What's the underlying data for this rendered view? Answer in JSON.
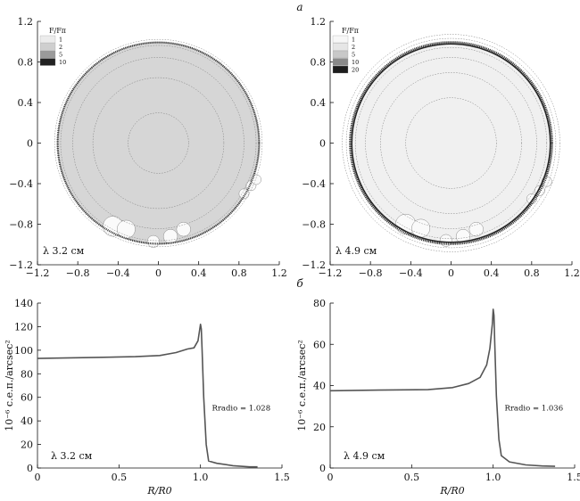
{
  "panel_labels": {
    "top": "a",
    "bottom": "б"
  },
  "colors": {
    "disk_top_left": "#d6d6d6",
    "disk_top_right": "#f0f0f0",
    "line": "#555555",
    "axis": "#111111"
  },
  "chart_data": [
    {
      "type": "heatmap",
      "title": "",
      "annotation": "λ 3.2 см",
      "legend_title": "F/Fπ",
      "legend": [
        {
          "label": "1",
          "color": "#ececec"
        },
        {
          "label": "2",
          "color": "#cfcfcf"
        },
        {
          "label": "5",
          "color": "#9a9a9a"
        },
        {
          "label": "10",
          "color": "#222222"
        }
      ],
      "xlim": [
        -1.2,
        1.2
      ],
      "ylim": [
        -1.2,
        1.2
      ],
      "xticks": [
        "−1.2",
        "−0.8",
        "−0.4",
        "0",
        "0.4",
        "0.8",
        "1.2"
      ],
      "yticks": [
        "1.2",
        "0.8",
        "0.4",
        "0",
        "−0.4",
        "−0.8",
        "−1.2"
      ],
      "disk_radius": 1.0,
      "contour_radii": [
        0.3,
        0.65,
        0.85,
        0.97,
        1.03
      ]
    },
    {
      "type": "heatmap",
      "title": "",
      "annotation": "λ 4.9 см",
      "legend_title": "F/Fπ",
      "legend": [
        {
          "label": "1",
          "color": "#f7f7f7"
        },
        {
          "label": "2",
          "color": "#e6e6e6"
        },
        {
          "label": "5",
          "color": "#c8c8c8"
        },
        {
          "label": "10",
          "color": "#8a8a8a"
        },
        {
          "label": "20",
          "color": "#1d1d1d"
        }
      ],
      "xlim": [
        -1.2,
        1.2
      ],
      "ylim": [
        -1.2,
        1.2
      ],
      "xticks": [
        "−1.2",
        "−0.8",
        "−0.4",
        "0",
        "0.4",
        "0.8",
        "1.2"
      ],
      "yticks": [
        "1.2",
        "0.8",
        "0.4",
        "0",
        "−0.4",
        "−0.8",
        "−1.2"
      ],
      "disk_radius": 1.0,
      "contour_radii": [
        0.45,
        0.7,
        0.85,
        0.95,
        1.04,
        1.08
      ]
    },
    {
      "type": "line",
      "annotation": "λ 3.2 см",
      "radio_label": "Rradio = 1.028",
      "xlabel": "R/R0",
      "ylabel": "10⁻⁶ с.е.п./arcsec²",
      "xlim": [
        0,
        1.5
      ],
      "ylim": [
        0,
        140
      ],
      "xticks": [
        "0",
        "0.5",
        "1.0",
        "1.5"
      ],
      "yticks": [
        "0",
        "20",
        "40",
        "60",
        "80",
        "100",
        "120",
        "140"
      ],
      "x": [
        0,
        0.2,
        0.4,
        0.6,
        0.75,
        0.85,
        0.92,
        0.96,
        0.985,
        1.0,
        1.005,
        1.01,
        1.02,
        1.035,
        1.05,
        1.1,
        1.2,
        1.3,
        1.35
      ],
      "y": [
        93,
        93.5,
        94,
        94.5,
        95.5,
        98,
        101,
        102,
        108,
        122,
        118,
        100,
        60,
        20,
        6,
        4,
        2,
        1,
        1
      ]
    },
    {
      "type": "line",
      "annotation": "λ 4.9 см",
      "radio_label": "Rradio = 1.036",
      "xlabel": "R/R0",
      "ylabel": "10⁻⁶ с.е.п./arcsec²",
      "xlim": [
        0,
        1.5
      ],
      "ylim": [
        0,
        80
      ],
      "xticks": [
        "0",
        "0.5",
        "1.0",
        "1.5"
      ],
      "yticks": [
        "0",
        "20",
        "40",
        "60",
        "80"
      ],
      "x": [
        0,
        0.3,
        0.6,
        0.75,
        0.85,
        0.92,
        0.96,
        0.98,
        0.995,
        1.0,
        1.005,
        1.01,
        1.02,
        1.035,
        1.05,
        1.1,
        1.2,
        1.3,
        1.38
      ],
      "y": [
        37.5,
        37.8,
        38,
        39,
        41,
        44,
        50,
        58,
        70,
        77,
        74,
        60,
        35,
        14,
        6,
        3,
        1.5,
        1,
        0.8
      ]
    }
  ]
}
